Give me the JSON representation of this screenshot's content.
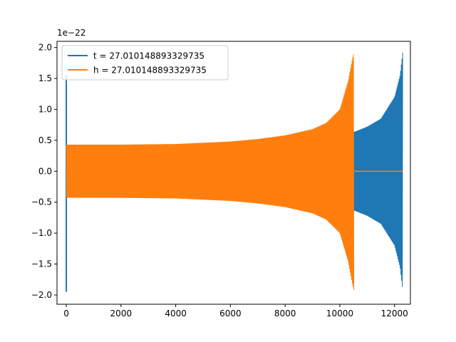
{
  "chart_data": {
    "type": "line",
    "title": "",
    "xlabel": "",
    "ylabel": "",
    "y_offset_label": "1e−22",
    "xlim": [
      -340,
      12580
    ],
    "ylim": [
      -2.15,
      2.1
    ],
    "x_ticks": [
      0,
      2000,
      4000,
      6000,
      8000,
      10000,
      12000
    ],
    "x_tick_labels": [
      "0",
      "2000",
      "4000",
      "6000",
      "8000",
      "10000",
      "12000"
    ],
    "y_ticks": [
      -2.0,
      -1.5,
      -1.0,
      -0.5,
      0.0,
      0.5,
      1.0,
      1.5,
      2.0
    ],
    "y_tick_labels": [
      "−2.0",
      "−1.5",
      "−1.0",
      "−0.5",
      "0.0",
      "0.5",
      "1.0",
      "1.5",
      "2.0"
    ],
    "grid": false,
    "legend_position": "top-left",
    "series": [
      {
        "name": "t = 27.010148893329735",
        "color": "#1f77b4",
        "description": "chirp waveform: initial spike at x=0 (+1.55/-1.95), low-level chirp from 0 to ~1800, growing-amplitude oscillation from ~1800 to ~12300 ending at peak ±1.9",
        "spike_x": 0,
        "spike_max": 1.55,
        "spike_min": -1.95,
        "chirp_start_x": 1800,
        "chirp_end_x": 12300,
        "amplitude_envelope": [
          [
            1800,
            0.42
          ],
          [
            4000,
            0.42
          ],
          [
            6000,
            0.45
          ],
          [
            8000,
            0.52
          ],
          [
            10000,
            0.62
          ],
          [
            10550,
            0.64
          ],
          [
            11000,
            0.72
          ],
          [
            11500,
            0.85
          ],
          [
            12000,
            1.2
          ],
          [
            12200,
            1.55
          ],
          [
            12300,
            1.93
          ]
        ],
        "flat_zero_range": [
          0,
          1800
        ]
      },
      {
        "name": "h = 27.010148893329735",
        "color": "#ff7f0e",
        "description": "chirp waveform from 0 to ~10520 ending at peak ±1.93, flat zero from ~10520 to ~12300",
        "chirp_start_x": 0,
        "chirp_end_x": 10520,
        "amplitude_envelope": [
          [
            0,
            0.43
          ],
          [
            2000,
            0.43
          ],
          [
            4000,
            0.44
          ],
          [
            6000,
            0.48
          ],
          [
            7000,
            0.52
          ],
          [
            8000,
            0.58
          ],
          [
            9000,
            0.68
          ],
          [
            9500,
            0.78
          ],
          [
            10000,
            1.0
          ],
          [
            10300,
            1.45
          ],
          [
            10450,
            1.8
          ],
          [
            10520,
            1.93
          ]
        ],
        "flat_zero_range": [
          10520,
          12300
        ]
      }
    ]
  }
}
